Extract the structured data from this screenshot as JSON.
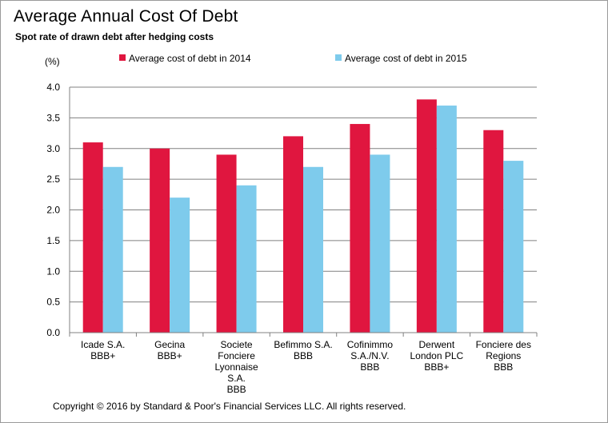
{
  "header": {
    "title": "Average Annual Cost Of Debt",
    "subtitle": "Spot rate of drawn debt after hedging costs"
  },
  "footer": {
    "copyright": "Copyright © 2016 by Standard & Poor's Financial Services LLC. All rights reserved."
  },
  "chart_data": {
    "type": "bar",
    "title": "Average Annual Cost Of Debt",
    "subtitle": "Spot rate of drawn debt after hedging costs",
    "ylabel": "(%)",
    "ylim": [
      0,
      4.0
    ],
    "yticks": [
      "0.0",
      "0.5",
      "1.0",
      "1.5",
      "2.0",
      "2.5",
      "3.0",
      "3.5",
      "4.0"
    ],
    "grid": true,
    "legend_position": "top",
    "categories": [
      [
        "Icade S.A.",
        "BBB+"
      ],
      [
        "Gecina",
        "BBB+"
      ],
      [
        "Societe",
        "Fonciere",
        "Lyonnaise",
        "S.A.",
        "BBB"
      ],
      [
        "Befimmo S.A.",
        "BBB"
      ],
      [
        "Cofinimmo",
        "S.A./N.V.",
        "BBB"
      ],
      [
        "Derwent",
        "London PLC",
        "BBB+"
      ],
      [
        "Fonciere des",
        "Regions",
        "BBB"
      ]
    ],
    "series": [
      {
        "name": "Average cost of debt in 2014",
        "color": "#e0163f",
        "values": [
          3.1,
          3.0,
          2.9,
          3.2,
          3.4,
          3.8,
          3.3
        ]
      },
      {
        "name": "Average cost of debt in 2015",
        "color": "#7ecbec",
        "values": [
          2.7,
          2.2,
          2.4,
          2.7,
          2.9,
          3.7,
          2.8
        ]
      }
    ]
  }
}
